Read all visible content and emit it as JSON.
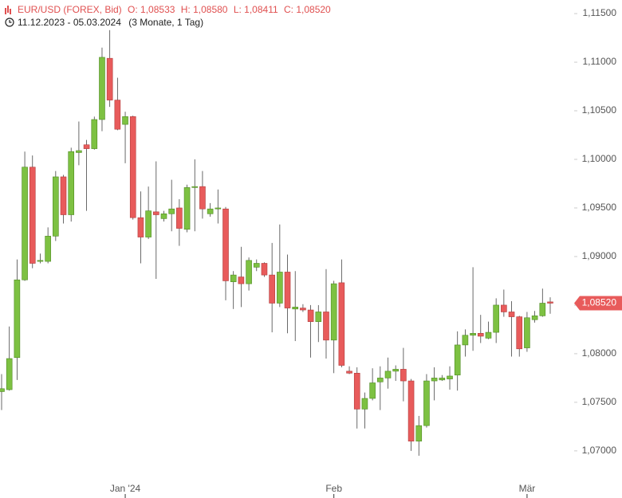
{
  "chart_data": {
    "type": "candlestick",
    "title": "EUR/USD (FOREX, Bid)",
    "ohlc_labels": [
      "O: 1,08533",
      "H: 1,08580",
      "L: 1,08411",
      "C: 1,08520"
    ],
    "date_range": "11.12.2023 - 05.03.2024",
    "period": "(3 Monate, 1 Tag)",
    "categories": [
      null,
      null,
      null,
      null,
      null,
      null,
      null,
      null,
      null,
      null,
      null,
      null,
      null,
      null,
      null,
      null,
      "Jan '24",
      null,
      null,
      null,
      null,
      null,
      null,
      null,
      null,
      null,
      null,
      null,
      null,
      null,
      null,
      null,
      null,
      null,
      null,
      null,
      null,
      null,
      null,
      null,
      null,
      null,
      null,
      "Feb",
      null,
      null,
      null,
      null,
      null,
      null,
      null,
      null,
      null,
      null,
      null,
      null,
      null,
      null,
      null,
      null,
      null,
      null,
      null,
      null,
      null,
      null,
      null,
      null,
      "Mär",
      null,
      null,
      null
    ],
    "open": [
      1.0761,
      1.0763,
      1.0796,
      1.0876,
      1.0992,
      1.0895,
      1.0895,
      1.0921,
      1.0982,
      1.0943,
      1.1007,
      1.1015,
      1.1011,
      1.1041,
      1.1104,
      1.1061,
      1.1036,
      1.1044,
      1.094,
      1.092,
      1.0946,
      1.0939,
      1.0944,
      1.095,
      1.0928,
      1.0971,
      1.0972,
      1.0944,
      1.0949,
      1.0949,
      1.0874,
      1.0879,
      1.0872,
      1.0889,
      1.0893,
      1.0881,
      1.0852,
      1.0884,
      1.0846,
      1.0847,
      1.0845,
      1.0833,
      1.0843,
      1.0814,
      1.0873,
      1.0782,
      1.078,
      1.0743,
      1.0754,
      1.0771,
      1.0775,
      1.0782,
      1.0784,
      1.0772,
      1.071,
      1.0726,
      1.0772,
      1.0773,
      1.0774,
      1.0778,
      1.0809,
      1.0819,
      1.0821,
      1.0816,
      1.0822,
      1.085,
      1.0843,
      1.0838,
      1.0806,
      1.0835,
      1.0839,
      1.08533
    ],
    "high": [
      1.0779,
      1.0828,
      1.0897,
      1.1008,
      1.1004,
      1.0903,
      1.093,
      1.0988,
      1.0984,
      1.1012,
      1.1039,
      1.102,
      1.1044,
      1.1115,
      1.1133,
      1.1084,
      1.1049,
      1.1045,
      1.0967,
      1.0972,
      1.0998,
      1.0947,
      1.0979,
      1.0959,
      1.0974,
      1.1,
      1.0988,
      1.0955,
      1.0969,
      1.0951,
      1.0885,
      1.091,
      1.0899,
      1.0897,
      1.0894,
      1.0914,
      1.0933,
      1.0902,
      1.0885,
      1.0851,
      1.085,
      1.085,
      1.0887,
      1.0875,
      1.0897,
      1.0787,
      1.0786,
      1.076,
      1.0785,
      1.0787,
      1.0796,
      1.0788,
      1.0806,
      1.0774,
      1.0736,
      1.0779,
      1.0786,
      1.0778,
      1.0787,
      1.0823,
      1.0825,
      1.0889,
      1.084,
      1.0833,
      1.0857,
      1.0866,
      1.0854,
      1.0839,
      1.0843,
      1.0844,
      1.0867,
      1.0858
    ],
    "low": [
      1.0742,
      1.0762,
      1.0773,
      1.0875,
      1.0888,
      1.0893,
      1.0893,
      1.0916,
      1.0934,
      1.0936,
      1.0994,
      1.0947,
      1.101,
      1.1029,
      1.1054,
      1.103,
      1.0996,
      1.0938,
      1.0893,
      1.0918,
      1.0877,
      1.0936,
      1.0926,
      1.0911,
      1.0925,
      1.0926,
      1.0939,
      1.0941,
      1.0934,
      1.0855,
      1.0846,
      1.0848,
      1.0865,
      1.0885,
      1.0879,
      1.0822,
      1.0848,
      1.0821,
      1.0813,
      1.0843,
      1.0796,
      1.0812,
      1.0795,
      1.078,
      1.0786,
      1.0779,
      1.0723,
      1.0723,
      1.0752,
      1.0742,
      1.0764,
      1.0772,
      1.0751,
      1.07,
      1.0695,
      1.0724,
      1.0752,
      1.0772,
      1.0763,
      1.0762,
      1.0797,
      1.0803,
      1.0811,
      1.0815,
      1.0811,
      1.0838,
      1.0797,
      1.0797,
      1.0802,
      1.0832,
      1.0838,
      1.08411
    ],
    "close": [
      1.0764,
      1.0795,
      1.0876,
      1.0992,
      1.0893,
      1.0896,
      1.0921,
      1.0982,
      1.0943,
      1.1008,
      1.1009,
      1.1011,
      1.1041,
      1.1105,
      1.1061,
      1.1031,
      1.1044,
      1.094,
      1.092,
      1.0947,
      1.0943,
      1.0944,
      1.0949,
      1.0929,
      1.0971,
      1.0972,
      1.0949,
      1.0949,
      1.095,
      1.0875,
      1.0881,
      1.0872,
      1.0896,
      1.0893,
      1.0881,
      1.0852,
      1.0884,
      1.0847,
      1.0848,
      1.0845,
      1.0833,
      1.0843,
      1.0814,
      1.0872,
      1.0788,
      1.078,
      1.0743,
      1.0754,
      1.077,
      1.0775,
      1.0782,
      1.0784,
      1.0772,
      1.071,
      1.0726,
      1.0772,
      1.0775,
      1.0775,
      1.0777,
      1.0809,
      1.0819,
      1.0821,
      1.0818,
      1.0822,
      1.085,
      1.0843,
      1.0838,
      1.0805,
      1.0837,
      1.0839,
      1.0852,
      1.0852
    ],
    "up_color": "#7dc142",
    "down_color": "#e85b5b",
    "ylim": [
      1.0672,
      1.1164
    ],
    "yticks": [
      {
        "value": 1.07,
        "label": "1,07000"
      },
      {
        "value": 1.075,
        "label": "1,07500"
      },
      {
        "value": 1.08,
        "label": "1,08000"
      },
      {
        "value": 1.085,
        "label": "1,08500"
      },
      {
        "value": 1.09,
        "label": "1,09000"
      },
      {
        "value": 1.095,
        "label": "1,09500"
      },
      {
        "value": 1.1,
        "label": "1,10000"
      },
      {
        "value": 1.105,
        "label": "1,10500"
      },
      {
        "value": 1.11,
        "label": "1,11000"
      },
      {
        "value": 1.115,
        "label": "1,11500"
      }
    ],
    "last_price": {
      "value": 1.0852,
      "label": "1,08520"
    },
    "grid": false
  }
}
